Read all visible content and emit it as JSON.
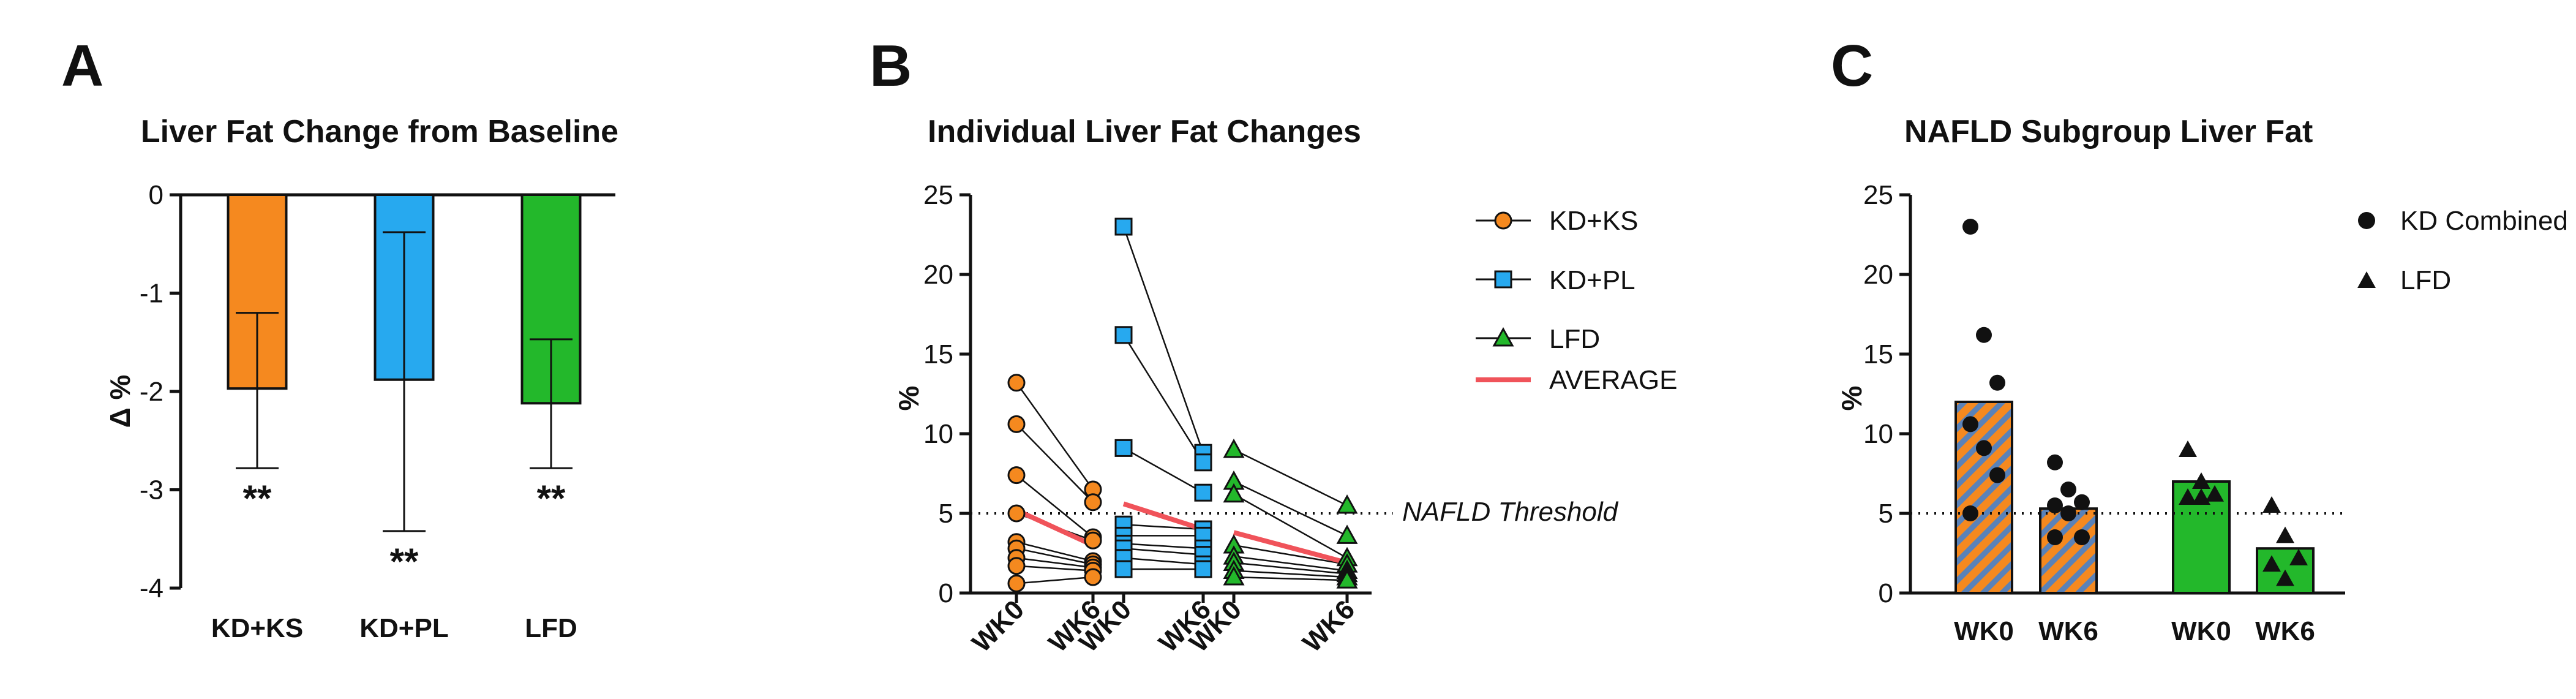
{
  "colors": {
    "orange": "#f5891f",
    "blue": "#27a9ef",
    "green": "#23b82b",
    "red": "#f0535a",
    "black": "#111111"
  },
  "panel_letters": [
    "A",
    "B",
    "C"
  ],
  "chart_data": [
    {
      "panel": "A",
      "type": "bar",
      "title": "Liver Fat Change from Baseline",
      "ylabel": "Δ %",
      "ylim": [
        -4,
        0
      ],
      "yticks": [
        "0",
        "-1",
        "-2",
        "-3",
        "-4"
      ],
      "categories": [
        "KD+KS",
        "KD+PL",
        "LFD"
      ],
      "values": [
        -1.97,
        -1.88,
        -2.12
      ],
      "error_low": [
        -2.78,
        -3.42,
        -2.78
      ],
      "error_high": [
        -1.2,
        -0.38,
        -1.47
      ],
      "significance": [
        "**",
        "**",
        "**"
      ]
    },
    {
      "panel": "B",
      "type": "line",
      "title": "Individual Liver Fat Changes",
      "ylabel": "%",
      "ylim": [
        0,
        25
      ],
      "yticks": [
        "0",
        "5",
        "10",
        "15",
        "20",
        "25"
      ],
      "x_labels": [
        "WK0",
        "WK6",
        "WK0",
        "WK6",
        "WK0",
        "WK6"
      ],
      "threshold": 5,
      "threshold_label": "NAFLD Threshold",
      "legend": [
        "KD+KS",
        "KD+PL",
        "LFD",
        "AVERAGE"
      ],
      "series": [
        {
          "name": "KD+KS",
          "marker": "circle",
          "wk0": [
            13.2,
            10.6,
            7.4,
            5.0,
            3.2,
            2.8,
            2.2,
            1.7,
            0.6
          ],
          "wk6": [
            6.5,
            5.7,
            3.5,
            3.3,
            2.0,
            1.8,
            1.6,
            1.4,
            1.0
          ],
          "avg": [
            5.2,
            3.0
          ]
        },
        {
          "name": "KD+PL",
          "marker": "square",
          "wk0": [
            23.0,
            16.2,
            9.1,
            4.3,
            3.6,
            3.1,
            2.8,
            2.2,
            1.5
          ],
          "wk6": [
            8.8,
            8.2,
            6.3,
            4.0,
            3.6,
            2.8,
            2.4,
            1.8,
            1.5
          ],
          "avg": [
            5.6,
            4.0
          ]
        },
        {
          "name": "LFD",
          "marker": "triangle",
          "wk0": [
            9.0,
            7.0,
            6.2,
            3.0,
            2.3,
            1.9,
            1.4,
            1.0
          ],
          "wk6": [
            5.5,
            3.6,
            2.2,
            1.8,
            1.4,
            1.2,
            1.0,
            0.8
          ],
          "avg": [
            3.8,
            1.9
          ]
        }
      ]
    },
    {
      "panel": "C",
      "type": "bar",
      "title": "NAFLD Subgroup Liver Fat",
      "ylabel": "%",
      "ylim": [
        0,
        25
      ],
      "yticks": [
        "0",
        "5",
        "10",
        "15",
        "20",
        "25"
      ],
      "categories": [
        "WK0",
        "WK6",
        "WK0",
        "WK6"
      ],
      "values": [
        12.0,
        5.3,
        7.0,
        2.8
      ],
      "groups": [
        "KD Combined",
        "KD Combined",
        "LFD",
        "LFD"
      ],
      "points": [
        [
          23.0,
          16.2,
          13.2,
          10.6,
          9.1,
          7.4,
          5.0
        ],
        [
          8.2,
          6.5,
          5.7,
          5.5,
          5.0,
          3.5,
          3.5
        ],
        [
          9.0,
          7.0,
          6.2,
          6.0,
          6.0
        ],
        [
          5.5,
          3.6,
          2.2,
          1.8,
          0.9
        ]
      ],
      "threshold": 5,
      "legend": [
        "KD Combined",
        "LFD"
      ]
    }
  ]
}
